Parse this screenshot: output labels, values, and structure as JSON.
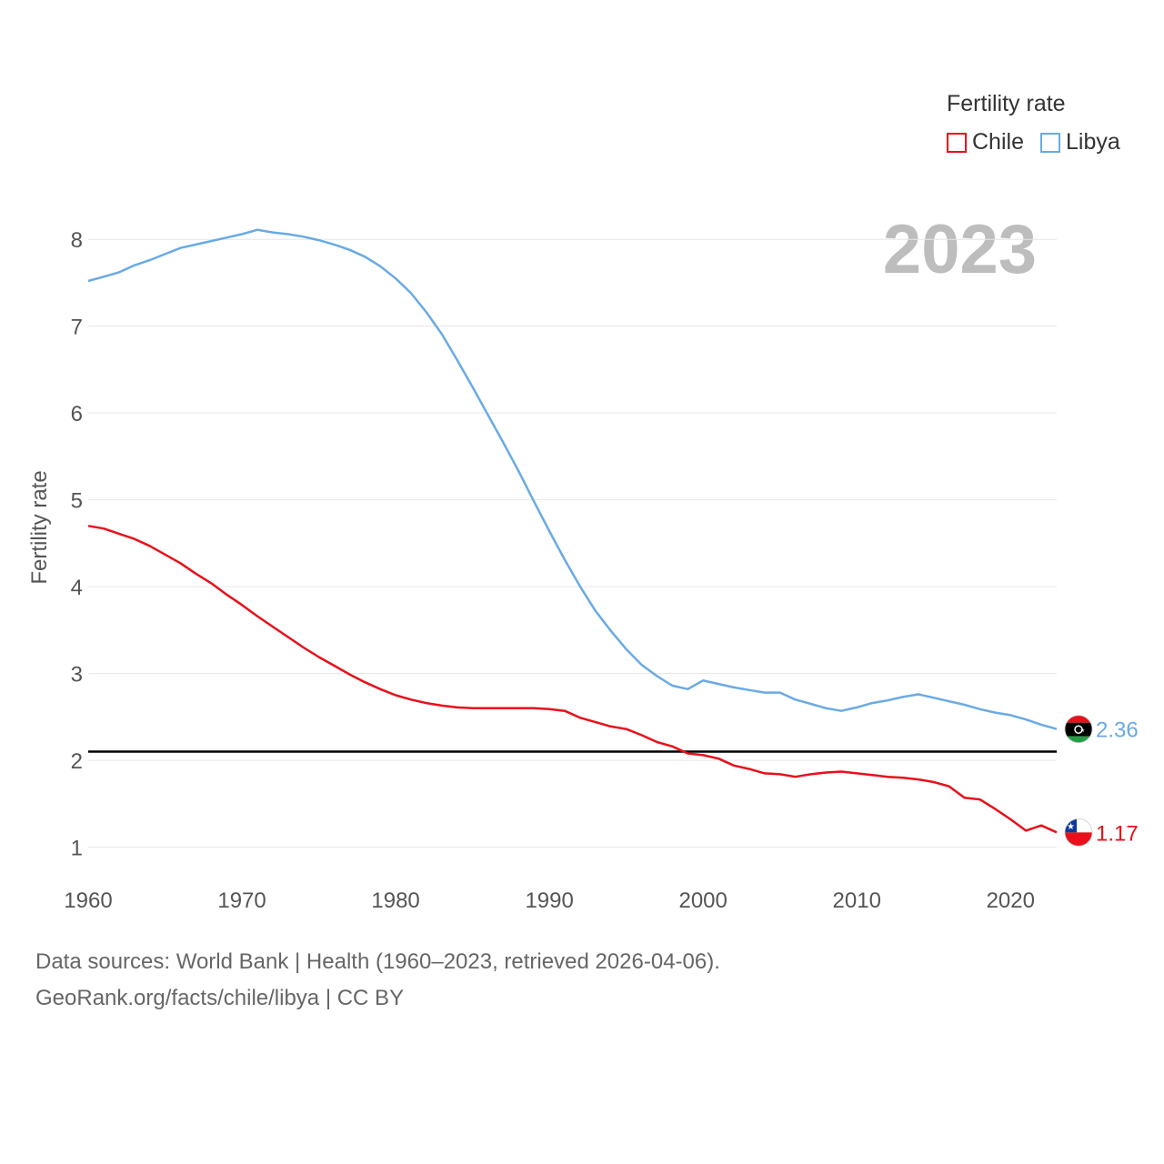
{
  "legend": {
    "title": "Fertility rate",
    "items": [
      {
        "label": "Chile",
        "color": "#e8101a"
      },
      {
        "label": "Libya",
        "color": "#6aaae4"
      }
    ]
  },
  "year_watermark": "2023",
  "footer": {
    "line1": "Data sources: World Bank | Health (1960–2023, retrieved 2026-04-06).",
    "line2": "GeoRank.org/facts/chile/libya | CC BY"
  },
  "chart_data": {
    "type": "line",
    "title": "",
    "xlabel": "",
    "ylabel": "Fertility rate",
    "xlim": [
      1960,
      2023
    ],
    "ylim": [
      0.65,
      8.4
    ],
    "xticks": [
      1960,
      1970,
      1980,
      1990,
      2000,
      2010,
      2020
    ],
    "yticks": [
      1,
      2,
      3,
      4,
      5,
      6,
      7,
      8
    ],
    "reference_line": 2.1,
    "x": [
      1960,
      1961,
      1962,
      1963,
      1964,
      1965,
      1966,
      1967,
      1968,
      1969,
      1970,
      1971,
      1972,
      1973,
      1974,
      1975,
      1976,
      1977,
      1978,
      1979,
      1980,
      1981,
      1982,
      1983,
      1984,
      1985,
      1986,
      1987,
      1988,
      1989,
      1990,
      1991,
      1992,
      1993,
      1994,
      1995,
      1996,
      1997,
      1998,
      1999,
      2000,
      2001,
      2002,
      2003,
      2004,
      2005,
      2006,
      2007,
      2008,
      2009,
      2010,
      2011,
      2012,
      2013,
      2014,
      2015,
      2016,
      2017,
      2018,
      2019,
      2020,
      2021,
      2022,
      2023
    ],
    "series": [
      {
        "name": "Chile",
        "color": "#e8101a",
        "end_label": "1.17",
        "values": [
          4.7,
          4.67,
          4.61,
          4.55,
          4.47,
          4.37,
          4.27,
          4.15,
          4.04,
          3.91,
          3.79,
          3.66,
          3.54,
          3.42,
          3.3,
          3.19,
          3.09,
          2.99,
          2.9,
          2.82,
          2.75,
          2.7,
          2.66,
          2.63,
          2.61,
          2.6,
          2.6,
          2.6,
          2.6,
          2.6,
          2.59,
          2.57,
          2.49,
          2.44,
          2.39,
          2.36,
          2.29,
          2.21,
          2.16,
          2.08,
          2.06,
          2.02,
          1.94,
          1.9,
          1.85,
          1.84,
          1.81,
          1.84,
          1.86,
          1.87,
          1.85,
          1.83,
          1.81,
          1.8,
          1.78,
          1.75,
          1.7,
          1.57,
          1.55,
          1.44,
          1.32,
          1.19,
          1.25,
          1.17
        ]
      },
      {
        "name": "Libya",
        "color": "#6aaae4",
        "end_label": "2.36",
        "values": [
          7.52,
          7.57,
          7.62,
          7.7,
          7.76,
          7.83,
          7.9,
          7.94,
          7.98,
          8.02,
          8.06,
          8.11,
          8.08,
          8.06,
          8.03,
          7.99,
          7.94,
          7.88,
          7.8,
          7.69,
          7.55,
          7.38,
          7.16,
          6.91,
          6.61,
          6.3,
          5.98,
          5.66,
          5.33,
          4.98,
          4.64,
          4.31,
          4.0,
          3.72,
          3.49,
          3.28,
          3.1,
          2.97,
          2.86,
          2.82,
          2.92,
          2.88,
          2.84,
          2.81,
          2.78,
          2.78,
          2.7,
          2.65,
          2.6,
          2.57,
          2.61,
          2.66,
          2.69,
          2.73,
          2.76,
          2.72,
          2.68,
          2.64,
          2.59,
          2.55,
          2.52,
          2.47,
          2.41,
          2.36
        ]
      }
    ]
  }
}
